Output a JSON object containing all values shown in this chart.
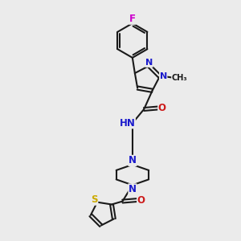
{
  "bg_color": "#ebebeb",
  "bond_color": "#1a1a1a",
  "bond_width": 1.5,
  "atom_colors": {
    "C": "#1a1a1a",
    "N": "#1a1acc",
    "O": "#cc1a1a",
    "F": "#cc00cc",
    "S": "#ccaa00"
  },
  "font_size": 8.5,
  "fig_size": [
    3.0,
    3.0
  ],
  "dpi": 100
}
